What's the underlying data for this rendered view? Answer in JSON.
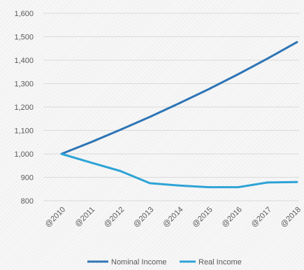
{
  "chart_data": {
    "type": "line",
    "categories": [
      "@2010",
      "@2011",
      "@2012",
      "@2013",
      "@2014",
      "@2015",
      "@2016",
      "@2017",
      "@2018"
    ],
    "series": [
      {
        "name": "Nominal Income",
        "color": "#2e75b6",
        "values": [
          1000,
          1050,
          1103,
          1158,
          1216,
          1276,
          1340,
          1407,
          1477
        ]
      },
      {
        "name": "Real Income",
        "color": "#2ea3d6",
        "values": [
          1000,
          963,
          927,
          875,
          865,
          858,
          858,
          878,
          880
        ]
      }
    ],
    "y_ticks": [
      "1,600",
      "1,500",
      "1,400",
      "1,300",
      "1,200",
      "1,100",
      "1,000",
      "900",
      "800"
    ],
    "ylim": [
      800,
      1600
    ],
    "grid": true,
    "legend": "bottom"
  }
}
